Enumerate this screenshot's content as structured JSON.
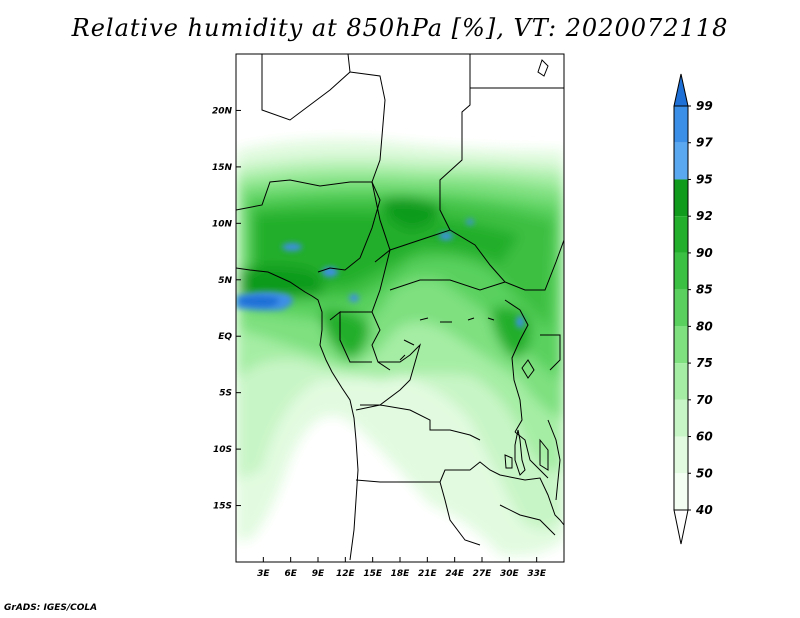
{
  "title": "Relative humidity at 850hPa [%], VT: 2020072118",
  "credit": "GrADS: IGES/COLA",
  "map": {
    "lon_range": [
      0,
      36
    ],
    "lat_range": [
      -20,
      25
    ],
    "lon_ticks": [
      "3E",
      "6E",
      "9E",
      "12E",
      "15E",
      "18E",
      "21E",
      "24E",
      "27E",
      "30E",
      "33E"
    ],
    "lat_ticks": [
      "20N",
      "15N",
      "10N",
      "5N",
      "EQ",
      "5S",
      "10S",
      "15S"
    ]
  },
  "colorbar": {
    "levels": [
      "99",
      "97",
      "95",
      "92",
      "90",
      "85",
      "80",
      "75",
      "70",
      "60",
      "50",
      "40"
    ],
    "colors": [
      "#1e6fd6",
      "#3c8fe6",
      "#5aa9f0",
      "#119b1d",
      "#23ae2c",
      "#3cc043",
      "#5ad15f",
      "#7ee07f",
      "#a5eda4",
      "#c8f5c6",
      "#e2fbe0",
      "#f4fef3"
    ]
  }
}
